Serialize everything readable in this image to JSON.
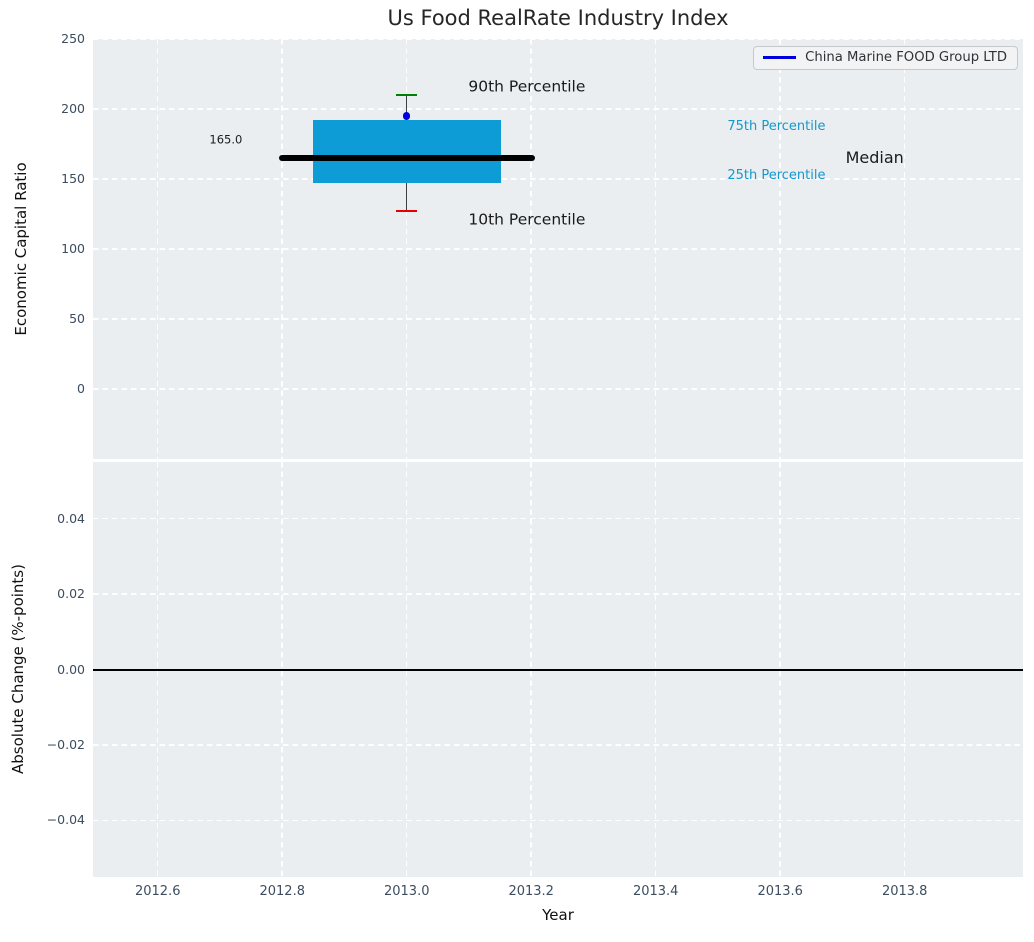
{
  "title": "Us Food RealRate Industry Index",
  "legend": {
    "label": "China Marine FOOD Group LTD",
    "line_color": "#0000dd"
  },
  "chart_data": {
    "type": "boxplot",
    "x_axis": {
      "label": "Year",
      "lim": [
        2012.496,
        2013.99
      ],
      "ticks": [
        {
          "v": 2012.6,
          "label": "2012.6"
        },
        {
          "v": 2012.8,
          "label": "2012.8"
        },
        {
          "v": 2013.0,
          "label": "2013.0"
        },
        {
          "v": 2013.2,
          "label": "2013.2"
        },
        {
          "v": 2013.4,
          "label": "2013.4"
        },
        {
          "v": 2013.6,
          "label": "2013.6"
        },
        {
          "v": 2013.8,
          "label": "2013.8"
        }
      ]
    },
    "top_plot": {
      "ylabel": "Economic Capital Ratio",
      "ylim": [
        -50,
        250
      ],
      "yticks": [
        {
          "v": 250,
          "label": "250"
        },
        {
          "v": 200,
          "label": "200"
        },
        {
          "v": 150,
          "label": "150"
        },
        {
          "v": 100,
          "label": "100"
        },
        {
          "v": 50,
          "label": "50"
        },
        {
          "v": 0,
          "label": "0"
        }
      ],
      "box": {
        "year": 2013.0,
        "p90": 210,
        "p75": 192,
        "median": 165,
        "p25": 147,
        "p10": 127,
        "median_label": "165.0",
        "box_half_width": 0.151,
        "median_half_width": 0.206,
        "cap_half_width": 0.017
      },
      "company_point": {
        "year": 2013.0,
        "value": 195
      },
      "annotations": [
        {
          "text": "90th Percentile",
          "x": 2013.099,
          "y": 216,
          "size": 15.5,
          "role": "dark"
        },
        {
          "text": "10th Percentile",
          "x": 2013.099,
          "y": 121,
          "size": 15.5,
          "role": "dark"
        },
        {
          "text": "165.0",
          "x": 2012.683,
          "y": 178,
          "size": 11.5,
          "role": "dark"
        },
        {
          "text": "75th Percentile",
          "x": 2013.515,
          "y": 187,
          "size": 13,
          "role": "percentile"
        },
        {
          "text": "25th Percentile",
          "x": 2013.515,
          "y": 152,
          "size": 13,
          "role": "percentile"
        },
        {
          "text": "Median",
          "x": 2013.705,
          "y": 165,
          "size": 16,
          "role": "dark"
        }
      ]
    },
    "bottom_plot": {
      "ylabel": "Absolute Change (%-points)",
      "ylim": [
        -0.055,
        0.055
      ],
      "yticks": [
        {
          "v": 0.04,
          "label": "0.04"
        },
        {
          "v": 0.02,
          "label": "0.02"
        },
        {
          "v": 0.0,
          "label": "0.00"
        },
        {
          "v": -0.02,
          "label": "−0.02"
        },
        {
          "v": -0.04,
          "label": "−0.04"
        }
      ],
      "zero_line": 0.0
    },
    "colors": {
      "axes_bg": "#eaeef1",
      "grid": "#ffffff",
      "box_fill": "#0d9cd6",
      "median_line": "#000000",
      "whisker": "#3f3f3f",
      "cap_top": "#008000",
      "cap_bottom": "#e80000",
      "company_marker": "#0000dd",
      "zero_line": "#000000",
      "tick_label": "#3d4d5f",
      "annotation_dark": "#1a1a1a",
      "annotation_percentile": "#1598cc"
    }
  }
}
